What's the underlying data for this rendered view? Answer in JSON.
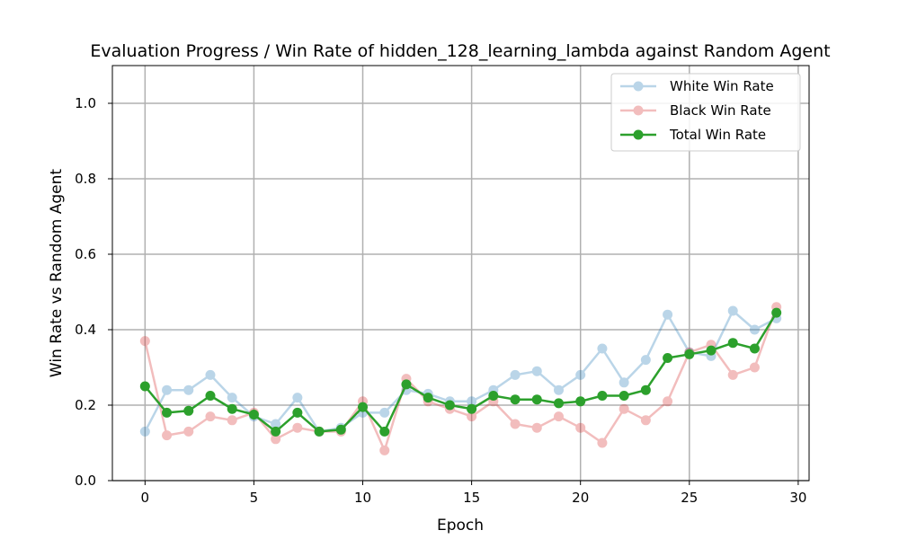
{
  "chart_data": {
    "type": "line",
    "title": "Evaluation Progress / Win Rate of hidden_128_learning_lambda against Random Agent",
    "xlabel": "Epoch",
    "ylabel": "Win Rate vs Random Agent",
    "xlim": [
      -1.5,
      30.5
    ],
    "ylim": [
      0,
      1.1
    ],
    "xticks": [
      0,
      5,
      10,
      15,
      20,
      25,
      30
    ],
    "yticks": [
      0.0,
      0.2,
      0.4,
      0.6,
      0.8,
      1.0
    ],
    "xtick_labels": [
      "0",
      "5",
      "10",
      "15",
      "20",
      "25",
      "30"
    ],
    "ytick_labels": [
      "0.0",
      "0.2",
      "0.4",
      "0.6",
      "0.8",
      "1.0"
    ],
    "grid": true,
    "legend_position": "top-right",
    "x": [
      0,
      1,
      2,
      3,
      4,
      5,
      6,
      7,
      8,
      9,
      10,
      11,
      12,
      13,
      14,
      15,
      16,
      17,
      18,
      19,
      20,
      21,
      22,
      23,
      24,
      25,
      26,
      27,
      28,
      29
    ],
    "series": [
      {
        "name": "White Win Rate",
        "color": "#1f77b4",
        "opacity": 0.3,
        "values": [
          0.13,
          0.24,
          0.24,
          0.28,
          0.22,
          0.17,
          0.15,
          0.22,
          0.13,
          0.14,
          0.18,
          0.18,
          0.24,
          0.23,
          0.21,
          0.21,
          0.24,
          0.28,
          0.29,
          0.24,
          0.28,
          0.35,
          0.26,
          0.32,
          0.44,
          0.34,
          0.33,
          0.45,
          0.4,
          0.43
        ]
      },
      {
        "name": "Black Win Rate",
        "color": "#d62728",
        "opacity": 0.3,
        "values": [
          0.37,
          0.12,
          0.13,
          0.17,
          0.16,
          0.18,
          0.11,
          0.14,
          0.13,
          0.13,
          0.21,
          0.08,
          0.27,
          0.21,
          0.19,
          0.17,
          0.21,
          0.15,
          0.14,
          0.17,
          0.14,
          0.1,
          0.19,
          0.16,
          0.21,
          0.34,
          0.36,
          0.28,
          0.3,
          0.46
        ]
      },
      {
        "name": "Total Win Rate",
        "color": "#2ca02c",
        "opacity": 1.0,
        "values": [
          0.25,
          0.18,
          0.185,
          0.225,
          0.19,
          0.175,
          0.13,
          0.18,
          0.13,
          0.135,
          0.195,
          0.13,
          0.255,
          0.22,
          0.2,
          0.19,
          0.225,
          0.215,
          0.215,
          0.205,
          0.21,
          0.225,
          0.225,
          0.24,
          0.325,
          0.335,
          0.345,
          0.365,
          0.35,
          0.445
        ]
      }
    ]
  }
}
